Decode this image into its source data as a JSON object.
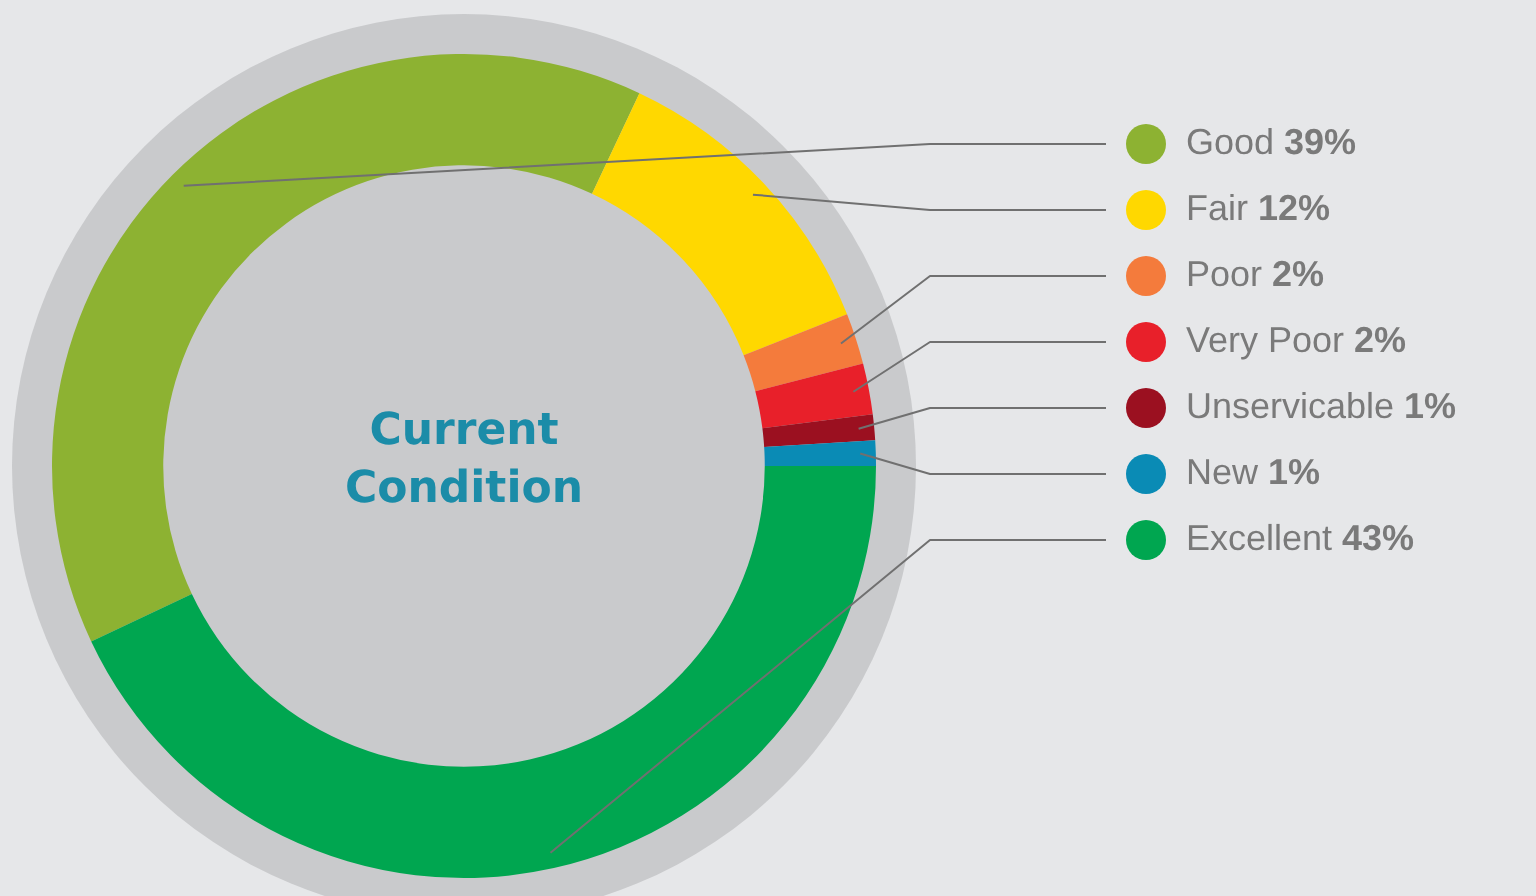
{
  "chart_data": {
    "type": "donut",
    "title": "Current Condition",
    "categories": [
      "Good",
      "Fair",
      "Poor",
      "Very Poor",
      "Unservicable",
      "New",
      "Excellent"
    ],
    "values": [
      39,
      12,
      2,
      2,
      1,
      1,
      43
    ],
    "value_labels": [
      "39%",
      "12%",
      "2%",
      "2%",
      "1%",
      "1%",
      "43%"
    ],
    "colors": [
      "#8db232",
      "#ffd800",
      "#f47b3c",
      "#e8202a",
      "#9b1020",
      "#0a8bb5",
      "#00a650"
    ],
    "legend": "right"
  }
}
